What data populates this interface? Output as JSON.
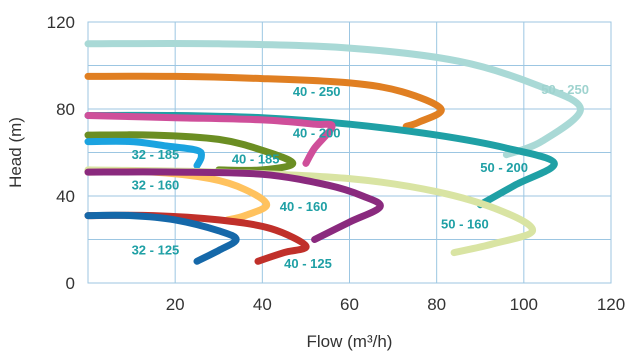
{
  "chart_data": {
    "type": "line",
    "xlabel": "Flow (m³/h)",
    "ylabel": "Head (m)",
    "xlim": [
      0,
      120
    ],
    "ylim": [
      0,
      120
    ],
    "xticks": [
      20,
      40,
      60,
      80,
      100,
      120
    ],
    "yticks": [
      0,
      40,
      80,
      120
    ],
    "grid": true,
    "series": [
      {
        "name": "50 - 250",
        "color": "#a9d9d6",
        "label_pos": [
          104,
          87
        ],
        "points": [
          [
            0,
            110
          ],
          [
            30,
            110
          ],
          [
            60,
            108
          ],
          [
            85,
            102
          ],
          [
            103,
            91
          ],
          [
            113,
            80
          ],
          [
            104,
            65
          ],
          [
            96,
            59
          ]
        ]
      },
      {
        "name": "40 - 250",
        "color": "#e07f22",
        "label_pos": [
          47,
          86
        ],
        "points": [
          [
            0,
            95
          ],
          [
            20,
            95
          ],
          [
            40,
            94
          ],
          [
            60,
            92
          ],
          [
            72,
            88
          ],
          [
            81,
            80
          ],
          [
            76,
            74
          ],
          [
            73,
            72
          ]
        ]
      },
      {
        "name": "50 - 200",
        "color": "#1fa0a5",
        "label_pos": [
          90,
          51
        ],
        "points": [
          [
            0,
            77
          ],
          [
            20,
            77
          ],
          [
            40,
            76
          ],
          [
            60,
            73
          ],
          [
            80,
            68
          ],
          [
            96,
            62
          ],
          [
            107,
            55
          ],
          [
            98,
            45
          ],
          [
            90,
            36
          ]
        ]
      },
      {
        "name": "40 - 200",
        "color": "#cf4f9a",
        "label_pos": [
          47,
          67
        ],
        "points": [
          [
            0,
            77
          ],
          [
            20,
            76
          ],
          [
            40,
            75
          ],
          [
            52,
            73
          ],
          [
            56,
            72
          ],
          [
            52,
            62
          ],
          [
            50,
            55
          ]
        ]
      },
      {
        "name": "40 - 185",
        "color": "#6b8e23",
        "label_pos": [
          33,
          55
        ],
        "points": [
          [
            0,
            68
          ],
          [
            15,
            68
          ],
          [
            30,
            66
          ],
          [
            40,
            61
          ],
          [
            47,
            55
          ],
          [
            40,
            52
          ],
          [
            30,
            52
          ]
        ]
      },
      {
        "name": "32 - 185",
        "color": "#1ba3e0",
        "label_pos": [
          10,
          57
        ],
        "points": [
          [
            0,
            65
          ],
          [
            10,
            65
          ],
          [
            18,
            63
          ],
          [
            25,
            61
          ],
          [
            26,
            58
          ],
          [
            25,
            54
          ]
        ]
      },
      {
        "name": "50 - 160",
        "color": "#d9e4a3",
        "label_pos": [
          81,
          25
        ],
        "points": [
          [
            0,
            52
          ],
          [
            30,
            51
          ],
          [
            60,
            48
          ],
          [
            80,
            42
          ],
          [
            95,
            33
          ],
          [
            102,
            24
          ],
          [
            93,
            18
          ],
          [
            84,
            14
          ]
        ]
      },
      {
        "name": "32 - 160",
        "color": "#ffc25e",
        "label_pos": [
          10,
          43
        ],
        "points": [
          [
            0,
            51
          ],
          [
            15,
            51
          ],
          [
            28,
            48
          ],
          [
            36,
            43
          ],
          [
            41,
            36
          ],
          [
            36,
            31
          ],
          [
            32,
            29
          ]
        ]
      },
      {
        "name": "40 - 160",
        "color": "#8a2a7e",
        "label_pos": [
          44,
          33
        ],
        "points": [
          [
            0,
            51
          ],
          [
            20,
            51
          ],
          [
            40,
            50
          ],
          [
            55,
            45
          ],
          [
            63,
            40
          ],
          [
            67,
            35
          ],
          [
            60,
            28
          ],
          [
            52,
            20
          ]
        ]
      },
      {
        "name": "40 - 125",
        "color": "#c0302a",
        "label_pos": [
          45,
          7
        ],
        "points": [
          [
            0,
            31
          ],
          [
            15,
            31
          ],
          [
            30,
            29
          ],
          [
            42,
            25
          ],
          [
            50,
            17
          ],
          [
            45,
            14
          ],
          [
            39,
            10
          ]
        ]
      },
      {
        "name": "32 - 125",
        "color": "#1568a9",
        "label_pos": [
          10,
          13
        ],
        "points": [
          [
            0,
            31
          ],
          [
            10,
            31
          ],
          [
            20,
            29
          ],
          [
            30,
            24
          ],
          [
            34,
            20
          ],
          [
            30,
            15
          ],
          [
            25,
            10
          ]
        ]
      }
    ]
  }
}
